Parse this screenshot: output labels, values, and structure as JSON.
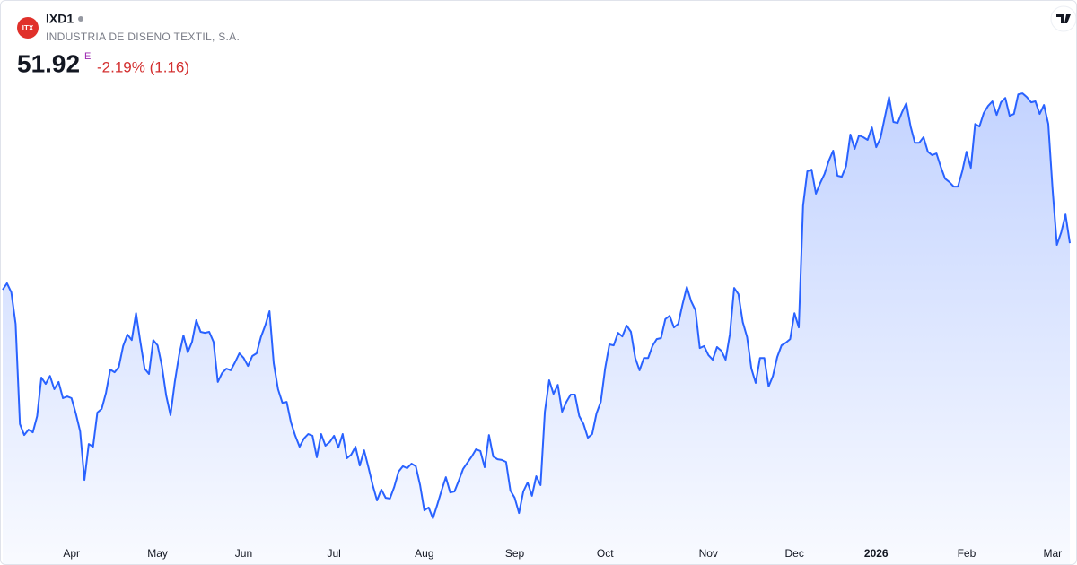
{
  "header": {
    "logo_text": "ITX",
    "symbol": "IXD1",
    "company": "INDUSTRIA DE DISENO TEXTIL, S.A.",
    "price": 51.92,
    "price_flag": "E",
    "change": "-2.19% (1.16)"
  },
  "chart_data": {
    "type": "area",
    "color": "#2962ff",
    "values": [
      50.0,
      50.26,
      49.89,
      48.59,
      44.45,
      44.0,
      44.22,
      44.11,
      44.78,
      46.37,
      46.11,
      46.44,
      45.89,
      46.19,
      45.52,
      45.59,
      45.52,
      44.89,
      44.15,
      42.15,
      43.63,
      43.52,
      44.93,
      45.08,
      45.74,
      46.7,
      46.59,
      46.81,
      47.67,
      48.15,
      47.92,
      49.03,
      47.85,
      46.74,
      46.52,
      47.92,
      47.7,
      46.85,
      45.63,
      44.82,
      46.19,
      47.3,
      48.11,
      47.41,
      47.85,
      48.74,
      48.26,
      48.22,
      48.26,
      47.85,
      46.19,
      46.56,
      46.74,
      46.67,
      47.0,
      47.37,
      47.18,
      46.85,
      47.26,
      47.37,
      48.04,
      48.52,
      49.11,
      46.96,
      45.89,
      45.33,
      45.37,
      44.52,
      43.97,
      43.52,
      43.85,
      44.04,
      43.97,
      43.08,
      44.04,
      43.56,
      43.71,
      43.97,
      43.48,
      44.04,
      43.04,
      43.19,
      43.52,
      42.74,
      43.37,
      42.67,
      41.93,
      41.3,
      41.75,
      41.41,
      41.38,
      41.86,
      42.49,
      42.71,
      42.63,
      42.82,
      42.71,
      41.93,
      40.89,
      41.01,
      40.56,
      41.12,
      41.71,
      42.26,
      41.63,
      41.67,
      42.12,
      42.6,
      42.86,
      43.11,
      43.41,
      43.34,
      42.67,
      44.0,
      43.11,
      43.0,
      42.97,
      42.89,
      41.71,
      41.41,
      40.78,
      41.67,
      42.04,
      41.49,
      42.3,
      41.93,
      44.96,
      46.26,
      45.7,
      46.07,
      44.96,
      45.37,
      45.67,
      45.67,
      44.78,
      44.45,
      43.89,
      44.04,
      44.89,
      45.37,
      46.74,
      47.74,
      47.7,
      48.22,
      48.07,
      48.52,
      48.26,
      47.18,
      46.67,
      47.18,
      47.18,
      47.67,
      47.96,
      48.0,
      48.78,
      48.92,
      48.44,
      48.59,
      49.4,
      50.11,
      49.52,
      49.15,
      47.59,
      47.67,
      47.3,
      47.11,
      47.63,
      47.48,
      47.11,
      48.15,
      50.07,
      49.81,
      48.66,
      48.04,
      46.74,
      46.15,
      47.18,
      47.18,
      46.0,
      46.44,
      47.22,
      47.7,
      47.81,
      47.96,
      49.03,
      48.44,
      53.47,
      54.88,
      54.95,
      53.96,
      54.4,
      54.77,
      55.32,
      55.73,
      54.7,
      54.66,
      55.1,
      56.4,
      55.81,
      56.36,
      56.29,
      56.18,
      56.69,
      55.88,
      56.25,
      57.1,
      57.95,
      56.92,
      56.88,
      57.32,
      57.69,
      56.73,
      56.06,
      56.06,
      56.29,
      55.69,
      55.55,
      55.62,
      55.07,
      54.58,
      54.44,
      54.25,
      54.25,
      54.88,
      55.69,
      55.03,
      56.84,
      56.73,
      57.29,
      57.58,
      57.77,
      57.21,
      57.73,
      57.91,
      57.17,
      57.25,
      58.06,
      58.1,
      57.95,
      57.73,
      57.77,
      57.25,
      57.62,
      56.84,
      54.14,
      51.85,
      52.36,
      53.1,
      51.92
    ],
    "xlim": [
      0,
      248
    ],
    "ylim": [
      39.71,
      58.4
    ],
    "xticks": [
      {
        "value": 16,
        "label": "Apr"
      },
      {
        "value": 36,
        "label": "May"
      },
      {
        "value": 56,
        "label": "Jun"
      },
      {
        "value": 77,
        "label": "Jul"
      },
      {
        "value": 98,
        "label": "Aug"
      },
      {
        "value": 119,
        "label": "Sep"
      },
      {
        "value": 140,
        "label": "Oct"
      },
      {
        "value": 164,
        "label": "Nov"
      },
      {
        "value": 184,
        "label": "Dec"
      },
      {
        "value": 203,
        "label": "2026"
      },
      {
        "value": 224,
        "label": "Feb"
      },
      {
        "value": 244,
        "label": "Mar"
      }
    ],
    "bold_ticks": [
      "2026"
    ]
  }
}
